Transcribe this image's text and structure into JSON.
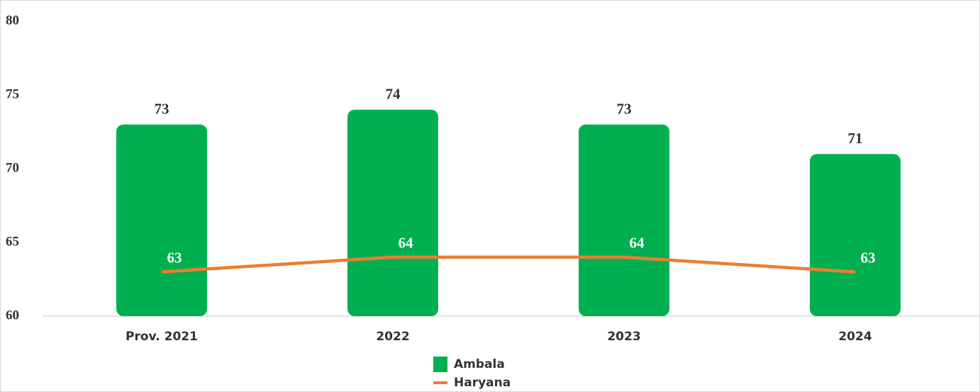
{
  "chart_data": {
    "type": "bar",
    "categories": [
      "Prov. 2021",
      "2022",
      "2023",
      "2024"
    ],
    "series": [
      {
        "name": "Ambala",
        "type": "bar",
        "color": "#00b050",
        "values": [
          73,
          74,
          73,
          71
        ]
      },
      {
        "name": "Haryana",
        "type": "line",
        "color": "#ed7d31",
        "values": [
          63,
          64,
          64,
          63
        ]
      }
    ],
    "ylim": [
      60,
      80
    ],
    "yticks": [
      60,
      65,
      70,
      75,
      80
    ],
    "grid": false,
    "legend": "bottom"
  }
}
